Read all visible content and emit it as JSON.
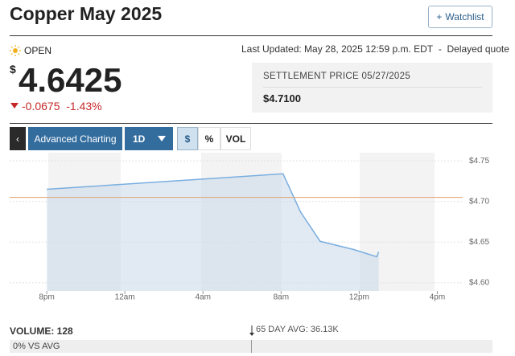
{
  "header": {
    "title": "Copper May 2025",
    "watchlist": "Watchlist"
  },
  "status": "OPEN",
  "last_updated": "Last Updated: May 28, 2025 12:59 p.m. EDT",
  "separator": "-",
  "delayed": "Delayed quote",
  "price": {
    "currency": "$",
    "value": "4.6425",
    "change": "-0.0675",
    "change_percent": "-1.43%"
  },
  "settlement": {
    "label": "SETTLEMENT PRICE 05/27/2025",
    "value": "$4.7100"
  },
  "toolbar": {
    "advanced": "Advanced Charting",
    "range": "1D",
    "modes": [
      "$",
      "%",
      "VOL"
    ]
  },
  "chart_data": {
    "type": "line",
    "x": [
      0,
      12.1,
      13,
      14,
      15.7,
      16.9,
      17
    ],
    "values": [
      4.715,
      4.734,
      4.687,
      4.651,
      4.641,
      4.632,
      4.638
    ],
    "color": "#7aaee0",
    "reference_line": {
      "value": 4.705,
      "color": "#e0a070"
    },
    "xlim": [
      -1.9,
      21.3
    ],
    "ylim": [
      4.59,
      4.76
    ],
    "xticks": [
      {
        "value": 0,
        "label": "8pm"
      },
      {
        "value": 4,
        "label": "12am"
      },
      {
        "value": 8,
        "label": "4am"
      },
      {
        "value": 12,
        "label": "8am"
      },
      {
        "value": 16,
        "label": "12pm"
      },
      {
        "value": 20,
        "label": "4pm"
      }
    ],
    "yticks": [
      {
        "value": 4.6,
        "label": "$4.60"
      },
      {
        "value": 4.65,
        "label": "$4.65"
      },
      {
        "value": 4.7,
        "label": "$4.70"
      },
      {
        "value": 4.75,
        "label": "$4.75"
      }
    ],
    "grid": true
  },
  "volume": {
    "label": "VOLUME: 128",
    "average": "65 DAY AVG: 36.13K",
    "vs_avg": "0% VS AVG"
  }
}
